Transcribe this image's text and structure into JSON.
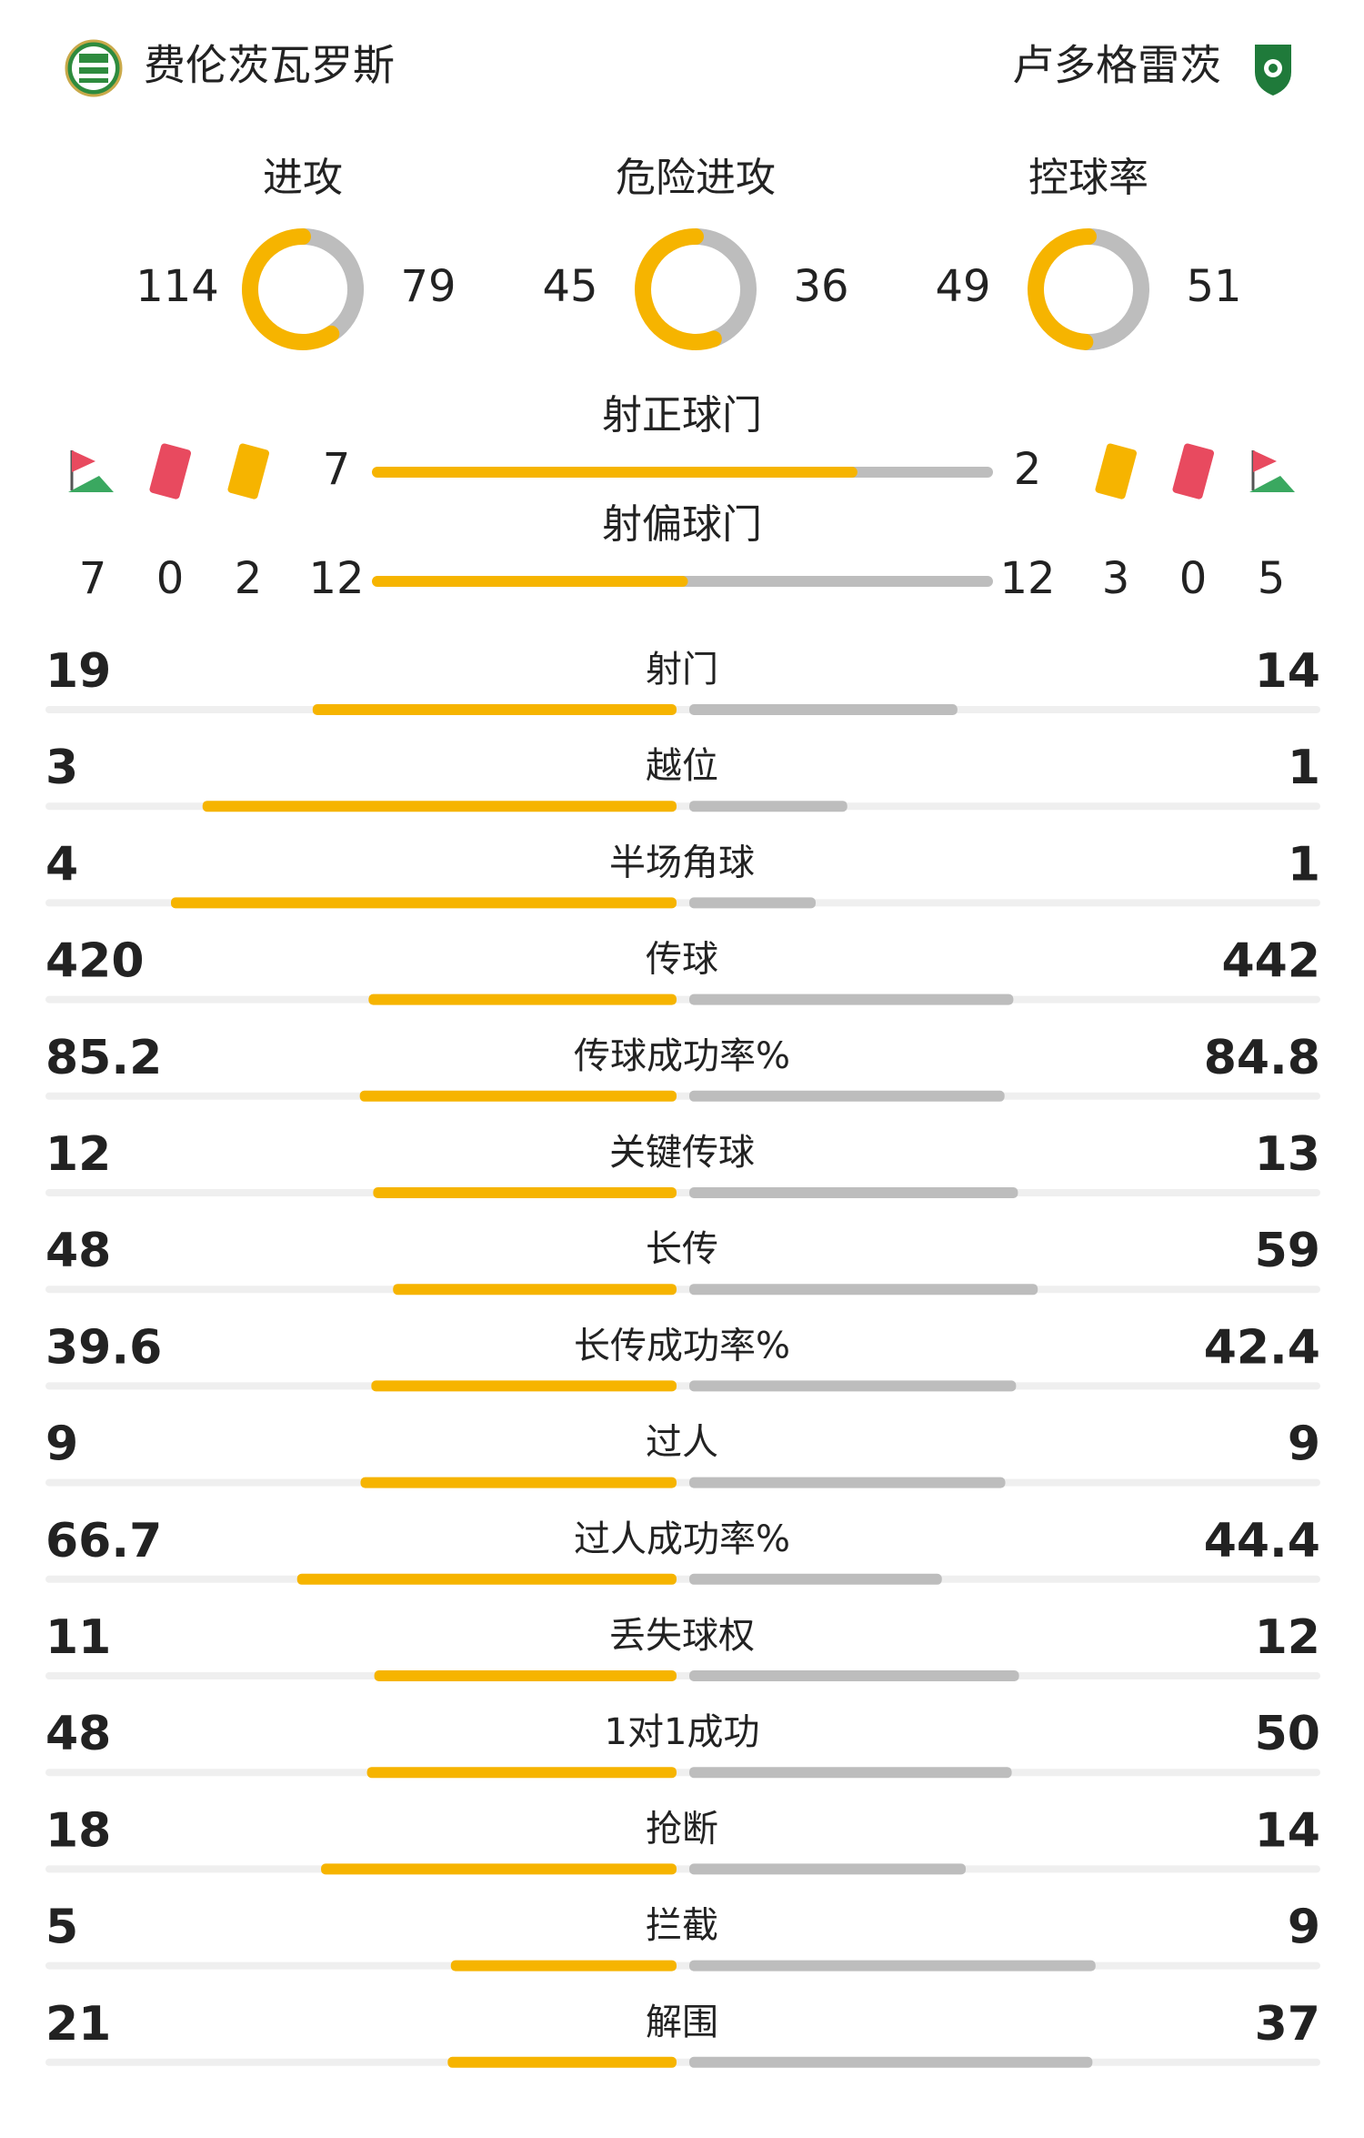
{
  "teams": {
    "home": {
      "name": "费伦茨瓦罗斯"
    },
    "away": {
      "name": "卢多格雷茨"
    }
  },
  "rings": [
    {
      "label": "进攻",
      "home": 114,
      "away": 79
    },
    {
      "label": "危险进攻",
      "home": 45,
      "away": 36
    },
    {
      "label": "控球率",
      "home": 49,
      "away": 51
    }
  ],
  "shots_on": {
    "label": "射正球门",
    "home": 7,
    "away": 2
  },
  "shots_off": {
    "label": "射偏球门",
    "home": 12,
    "away": 12
  },
  "cards": {
    "home": {
      "corners": 7,
      "red": 0,
      "yellow": 2
    },
    "away": {
      "yellow": 3,
      "red": 0,
      "corners": 5
    }
  },
  "stats": [
    {
      "label": "射门",
      "home": 19,
      "away": 14
    },
    {
      "label": "越位",
      "home": 3,
      "away": 1
    },
    {
      "label": "半场角球",
      "home": 4,
      "away": 1
    },
    {
      "label": "传球",
      "home": 420,
      "away": 442
    },
    {
      "label": "传球成功率%",
      "home": 85.2,
      "away": 84.8
    },
    {
      "label": "关键传球",
      "home": 12,
      "away": 13
    },
    {
      "label": "长传",
      "home": 48,
      "away": 59
    },
    {
      "label": "长传成功率%",
      "home": 39.6,
      "away": 42.4
    },
    {
      "label": "过人",
      "home": 9,
      "away": 9
    },
    {
      "label": "过人成功率%",
      "home": 66.7,
      "away": 44.4
    },
    {
      "label": "丢失球权",
      "home": 11,
      "away": 12
    },
    {
      "label": "1对1成功",
      "home": 48,
      "away": 50
    },
    {
      "label": "抢断",
      "home": 18,
      "away": 14
    },
    {
      "label": "拦截",
      "home": 5,
      "away": 9
    },
    {
      "label": "解围",
      "home": 21,
      "away": 37
    }
  ]
}
